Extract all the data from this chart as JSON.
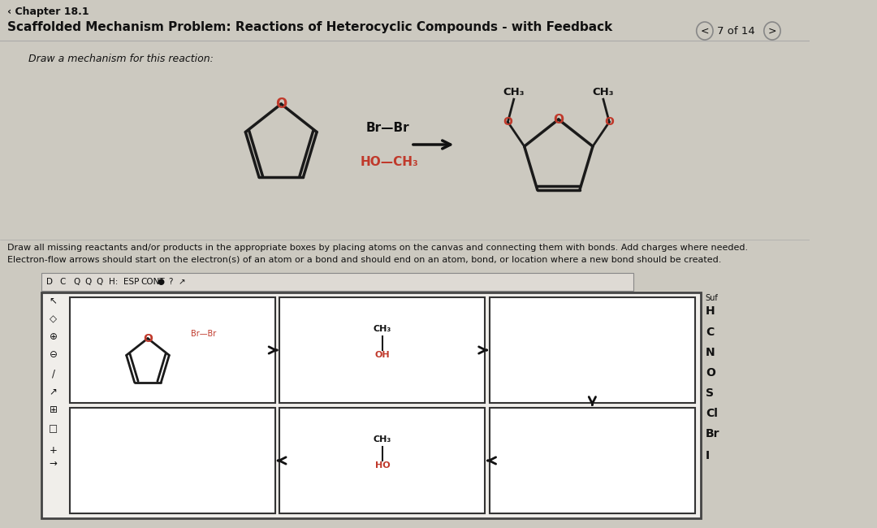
{
  "bg_color": "#ccc9c0",
  "white_panel": "#f2f0ec",
  "title_chapter": "‹ Chapter 18.1",
  "title_main": "Scaffolded Mechanism Problem: Reactions of Heterocyclic Compounds - with Feedback",
  "nav_text": "7 of 14",
  "instruction1": "Draw a mechanism for this reaction:",
  "instruction2": "Draw all missing reactants and/or products in the appropriate boxes by placing atoms on the canvas and connecting them with bonds. Add charges where needed.",
  "instruction3": "Electron-flow arrows should start on the electron(s) of an atom or a bond and should end on an atom, bond, or location where a new bond should be created.",
  "atom_color_red": "#c0392b",
  "bond_color": "#1a1a1a",
  "text_dark": "#111111",
  "canvas_bg": "#f0eeea",
  "box_bg": "#ffffff",
  "toolbar_bg": "#dedad4"
}
